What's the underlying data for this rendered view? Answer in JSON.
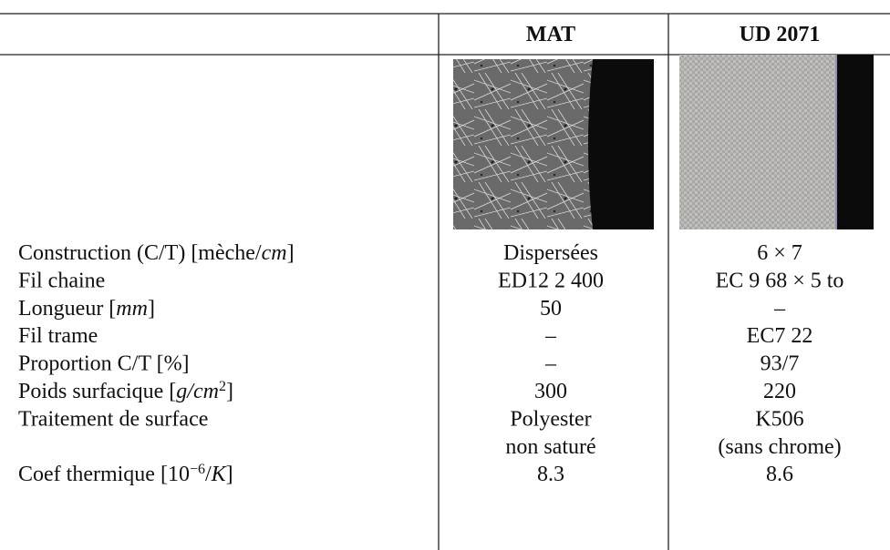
{
  "table": {
    "header": [
      "MAT",
      "UD 2071"
    ],
    "rows": [
      {
        "label": [
          {
            "text": "Construction (C/T) [mèche/"
          },
          {
            "text": "cm",
            "italic": true
          },
          {
            "text": "]"
          }
        ],
        "cells": [
          "Dispersées",
          "6 × 7"
        ]
      },
      {
        "label": [
          {
            "text": "Fil chaine"
          }
        ],
        "cells": [
          "ED12 2 400",
          "EC 9 68 × 5 to"
        ]
      },
      {
        "label": [
          {
            "text": "Longueur ["
          },
          {
            "text": "mm",
            "italic": true
          },
          {
            "text": "]"
          }
        ],
        "cells": [
          "50",
          "–"
        ]
      },
      {
        "label": [
          {
            "text": "Fil trame"
          }
        ],
        "cells": [
          "–",
          "EC7 22"
        ]
      },
      {
        "label": [
          {
            "text": "Proportion C/T [%]"
          }
        ],
        "cells": [
          "–",
          "93/7"
        ]
      },
      {
        "label": [
          {
            "text": "Poids surfacique ["
          },
          {
            "text": "g/cm",
            "italic": true
          },
          {
            "text": "2",
            "sup": true
          },
          {
            "text": "]"
          }
        ],
        "cells": [
          "300",
          "220"
        ]
      },
      {
        "label": [
          {
            "text": "Traitement de surface"
          }
        ],
        "cells": [
          [
            "Polyester",
            "non saturé"
          ],
          [
            "K506",
            "(sans chrome)"
          ]
        ]
      },
      {
        "label": [
          {
            "text": "Coef thermique [10"
          },
          {
            "text": "−6",
            "sup": true
          },
          {
            "text": "/"
          },
          {
            "text": "K",
            "italic": true
          },
          {
            "text": "]"
          }
        ],
        "cells": [
          "8.3",
          "8.6"
        ]
      }
    ]
  }
}
